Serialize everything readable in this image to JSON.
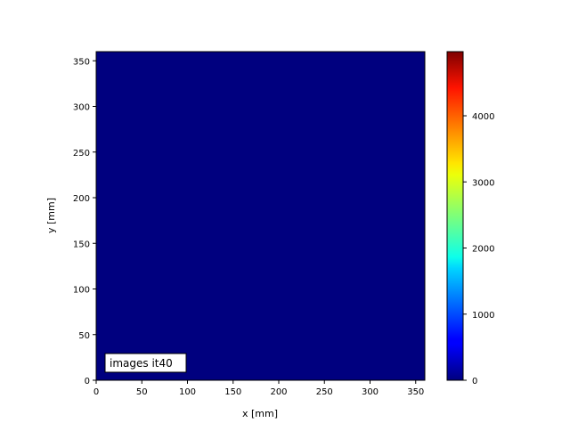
{
  "chart_data": {
    "type": "heatmap",
    "xlabel": "x [mm]",
    "ylabel": "y [mm]",
    "xlim": [
      0,
      360
    ],
    "ylim": [
      0,
      360
    ],
    "xticks": [
      0,
      50,
      100,
      150,
      200,
      250,
      300,
      350
    ],
    "yticks": [
      0,
      50,
      100,
      150,
      200,
      250,
      300,
      350
    ],
    "values": [
      [
        0
      ]
    ],
    "colormap": "jet",
    "clim": [
      0,
      4970
    ],
    "colorbar_ticks": [
      0,
      1000,
      2000,
      3000,
      4000
    ],
    "annotation": "images it40",
    "grid": false,
    "colors": {
      "low": "#00007f",
      "high": "#7f0000"
    }
  }
}
